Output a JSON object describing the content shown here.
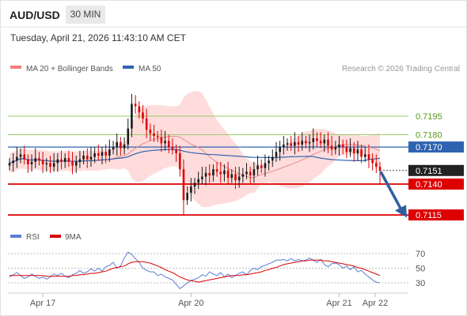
{
  "header": {
    "pair": "AUD/USD",
    "timeframe": "30 MIN",
    "timestamp": "Tuesday, April 21, 2026 11:43:10 AM CET"
  },
  "legend": {
    "ma20_label": "MA 20 + Bollinger Bands",
    "ma50_label": "MA 50",
    "credit": "Research © 2026 Trading Central",
    "rsi_label": "RSI",
    "rsi_ma_label": "9MA"
  },
  "colors": {
    "candle_up": "#1a1a1a",
    "candle_down": "#dd0000",
    "bollinger_fill": "#ffd6d6",
    "ma20": "#e88a8a",
    "ma50": "#2f63b0",
    "resistance": "#99cc66",
    "support": "#dd0000",
    "current_price": "#222222",
    "forecast_arrow": "#2f5f9e",
    "rsi": "#5b7fd6",
    "rsi_ma": "#dd0000"
  },
  "chart_data": [
    {
      "type": "candlestick",
      "title": "AUD/USD",
      "timeframe": "30 MIN",
      "x_tick_labels": [
        "Apr 17",
        "Apr 20",
        "Apr 21",
        "Apr 22"
      ],
      "ylim": [
        0.71,
        0.722
      ],
      "levels": [
        {
          "name": "resistance-2",
          "value": 0.7195,
          "label": "0.7195",
          "style": "green"
        },
        {
          "name": "resistance-1",
          "value": 0.718,
          "label": "0.7180",
          "style": "green"
        },
        {
          "name": "pivot",
          "value": 0.717,
          "label": "0.7170",
          "style": "blue"
        },
        {
          "name": "last-price",
          "value": 0.7151,
          "label": "0.7151",
          "style": "dark"
        },
        {
          "name": "support-1",
          "value": 0.714,
          "label": "0.7140",
          "style": "red"
        },
        {
          "name": "support-2",
          "value": 0.7115,
          "label": "0.7115",
          "style": "red"
        }
      ],
      "close_series": [
        0.7157,
        0.7159,
        0.7162,
        0.7164,
        0.716,
        0.7156,
        0.7158,
        0.7161,
        0.7159,
        0.7156,
        0.7157,
        0.7154,
        0.7157,
        0.716,
        0.7158,
        0.7161,
        0.7158,
        0.7155,
        0.7158,
        0.716,
        0.7163,
        0.716,
        0.7162,
        0.7165,
        0.7163,
        0.7166,
        0.7163,
        0.7168,
        0.717,
        0.7174,
        0.7169,
        0.7172,
        0.7185,
        0.7205,
        0.7203,
        0.7198,
        0.7193,
        0.7184,
        0.7181,
        0.7179,
        0.7178,
        0.7173,
        0.7175,
        0.717,
        0.7168,
        0.7165,
        0.7152,
        0.7127,
        0.7133,
        0.7138,
        0.7141,
        0.7144,
        0.7146,
        0.7149,
        0.7147,
        0.7152,
        0.715,
        0.7148,
        0.7151,
        0.7145,
        0.7148,
        0.7143,
        0.7146,
        0.7148,
        0.715,
        0.7147,
        0.7152,
        0.7155,
        0.7153,
        0.7157,
        0.7159,
        0.7162,
        0.7166,
        0.717,
        0.7172,
        0.7173,
        0.7171,
        0.7174,
        0.7172,
        0.7175,
        0.7173,
        0.7174,
        0.7177,
        0.7175,
        0.7173,
        0.7176,
        0.7171,
        0.7168,
        0.717,
        0.7172,
        0.717,
        0.7166,
        0.7169,
        0.7165,
        0.7168,
        0.7162,
        0.7164,
        0.716,
        0.7157,
        0.7154,
        0.7151
      ],
      "ma_periods": [
        20,
        50
      ]
    },
    {
      "type": "line",
      "title": "RSI",
      "series": [
        {
          "name": "RSI"
        },
        {
          "name": "9MA"
        }
      ],
      "ylim": [
        20,
        80
      ],
      "y_ticks": [
        70,
        50,
        30
      ],
      "rsi_values": [
        38,
        41,
        44,
        40,
        36,
        38,
        42,
        39,
        36,
        38,
        35,
        38,
        42,
        40,
        43,
        39,
        37,
        41,
        43,
        47,
        43,
        45,
        49,
        46,
        50,
        46,
        52,
        54,
        58,
        50,
        53,
        64,
        72,
        69,
        63,
        58,
        50,
        47,
        45,
        45,
        40,
        42,
        38,
        36,
        34,
        28,
        22,
        26,
        30,
        33,
        35,
        37,
        41,
        39,
        45,
        42,
        40,
        44,
        38,
        42,
        37,
        40,
        43,
        45,
        41,
        47,
        50,
        48,
        52,
        54,
        56,
        58,
        61,
        61,
        62,
        60,
        63,
        60,
        62,
        60,
        61,
        64,
        61,
        58,
        62,
        55,
        52,
        56,
        57,
        55,
        50,
        53,
        48,
        52,
        45,
        47,
        42,
        38,
        34,
        31,
        30
      ],
      "rsi_ma_values": [
        40,
        40,
        40,
        40,
        40,
        40,
        40,
        40,
        40,
        40,
        39,
        39,
        39,
        39,
        39,
        39,
        39,
        40,
        40,
        41,
        41,
        42,
        43,
        43,
        44,
        45,
        46,
        48,
        50,
        51,
        52,
        53,
        56,
        58,
        59,
        59,
        59,
        58,
        57,
        55,
        53,
        51,
        48,
        46,
        44,
        41,
        38,
        36,
        34,
        33,
        32,
        31,
        32,
        33,
        34,
        35,
        36,
        37,
        38,
        39,
        40,
        40,
        40,
        41,
        41,
        42,
        43,
        44,
        45,
        47,
        48,
        50,
        51,
        53,
        55,
        56,
        57,
        58,
        59,
        60,
        60,
        61,
        61,
        61,
        61,
        60,
        60,
        59,
        58,
        57,
        56,
        55,
        54,
        53,
        51,
        50,
        48,
        46,
        44,
        42,
        40
      ]
    }
  ]
}
